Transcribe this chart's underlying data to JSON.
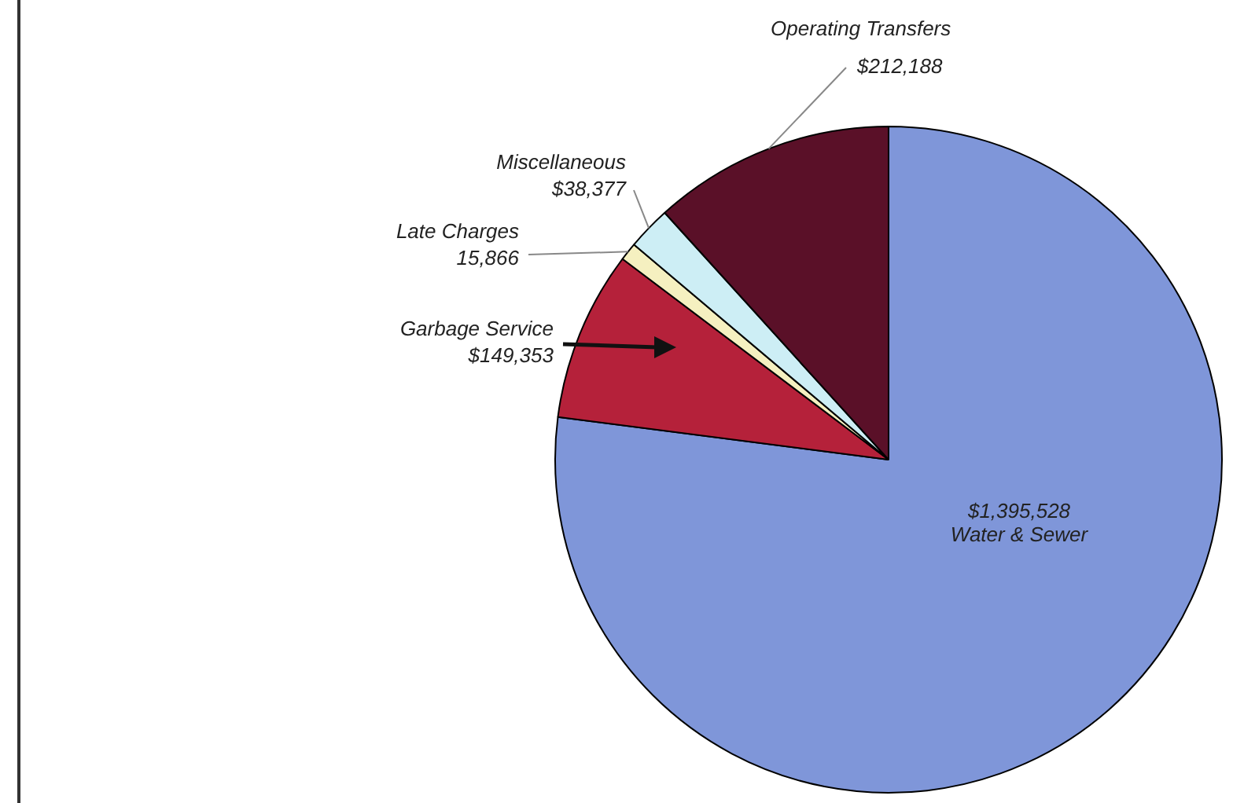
{
  "chart_data": {
    "type": "pie",
    "categories": [
      "Water & Sewer",
      "Garbage Service",
      "Late Charges",
      "Miscellaneous",
      "Operating Transfers"
    ],
    "values": [
      1395528,
      149353,
      15866,
      38377,
      212188
    ],
    "colors": [
      "#7f96d9",
      "#b5213a",
      "#f5f0c0",
      "#cdeef5",
      "#5a1028"
    ],
    "value_labels": [
      "$1,395,528",
      "$149,353",
      "15,866",
      "$38,377",
      "$212,188"
    ]
  }
}
